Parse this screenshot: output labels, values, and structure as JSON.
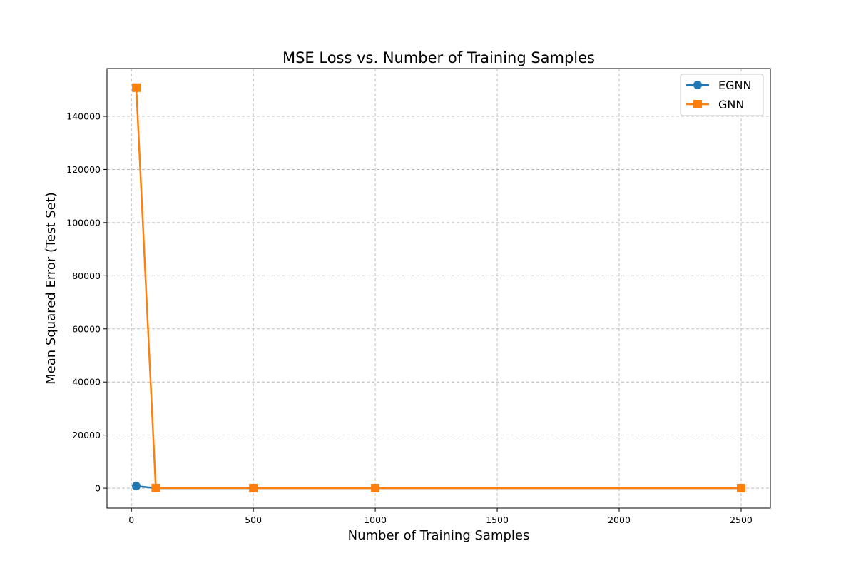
{
  "chart_data": {
    "type": "line",
    "title": "MSE Loss vs. Number of Training Samples",
    "xlabel": "Number of Training Samples",
    "ylabel": "Mean Squared Error (Test Set)",
    "xlim": [
      -100,
      2620
    ],
    "ylim": [
      -7500,
      158000
    ],
    "xticks": [
      0,
      500,
      1000,
      1500,
      2000,
      2500
    ],
    "yticks": [
      0,
      20000,
      40000,
      60000,
      80000,
      100000,
      120000,
      140000
    ],
    "grid": true,
    "legend_position": "top-right",
    "series": [
      {
        "name": "EGNN",
        "color": "#1f77b4",
        "marker": "circle",
        "x": [
          20,
          100,
          500,
          1000,
          2500
        ],
        "y": [
          800,
          30,
          15,
          10,
          8
        ]
      },
      {
        "name": "GNN",
        "color": "#ff7f0e",
        "marker": "square",
        "x": [
          20,
          100,
          500,
          1000,
          2500
        ],
        "y": [
          150800,
          60,
          40,
          30,
          20
        ]
      }
    ]
  }
}
